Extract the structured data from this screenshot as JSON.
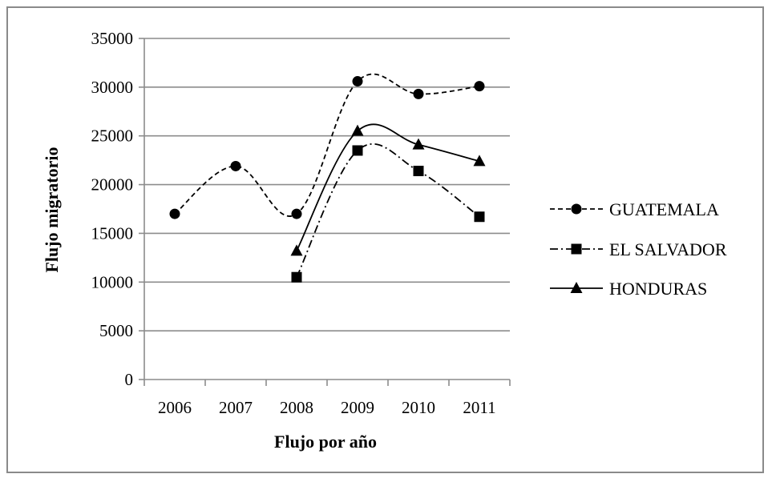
{
  "chart_data": {
    "type": "line",
    "title": "",
    "xlabel": "Flujo por año",
    "ylabel": "Flujo migratorio",
    "categories": [
      "2006",
      "2007",
      "2008",
      "2009",
      "2010",
      "2011"
    ],
    "ylim": [
      0,
      35000
    ],
    "yticks": [
      "0",
      "5000",
      "10000",
      "15000",
      "20000",
      "25000",
      "30000",
      "35000"
    ],
    "grid": true,
    "legend_position": "right",
    "series": [
      {
        "name": "GUATEMALA",
        "marker": "circle",
        "line": "dashed",
        "smooth": true,
        "values": [
          17000,
          21900,
          17000,
          30600,
          29300,
          30100
        ]
      },
      {
        "name": "EL SALVADOR",
        "marker": "square",
        "line": "dash-dot",
        "smooth": true,
        "values": [
          null,
          null,
          10500,
          23500,
          21400,
          16700
        ]
      },
      {
        "name": "HONDURAS",
        "marker": "triangle",
        "line": "solid",
        "smooth": true,
        "values": [
          null,
          null,
          13200,
          25500,
          24100,
          22400
        ]
      }
    ]
  }
}
